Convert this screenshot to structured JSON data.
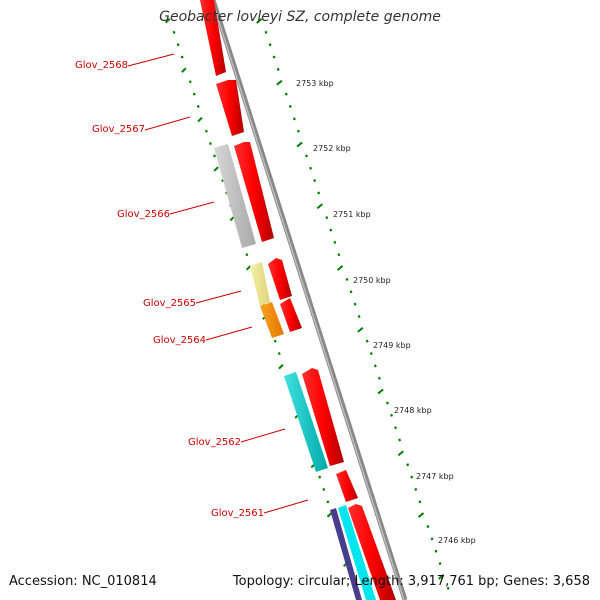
{
  "title": "Geobacter lovleyi SZ, complete genome",
  "footer": {
    "accession": "Accession: NC_010814",
    "summary": "Topology: circular; Length: 3,917,761 bp; Genes: 3,658"
  },
  "colors": {
    "gene_red": "#ff0000",
    "gene_grey": "#bbbbbb",
    "gene_yellow": "#eee68f",
    "gene_orange": "#ff8c00",
    "gene_cyan": "#00cccc",
    "gene_purple": "#483d8b",
    "backbone": "#888888",
    "tick_green": "#008000",
    "label_red": "#cc0000"
  },
  "gene_labels": [
    "Glov_2568",
    "Glov_2567",
    "Glov_2566",
    "Glov_2565",
    "Glov_2564",
    "Glov_2562",
    "Glov_2561"
  ],
  "scale_labels": [
    "2753 kbp",
    "2752 kbp",
    "2751 kbp",
    "2750 kbp",
    "2749 kbp",
    "2748 kbp",
    "2747 kbp",
    "2746 kbp"
  ]
}
